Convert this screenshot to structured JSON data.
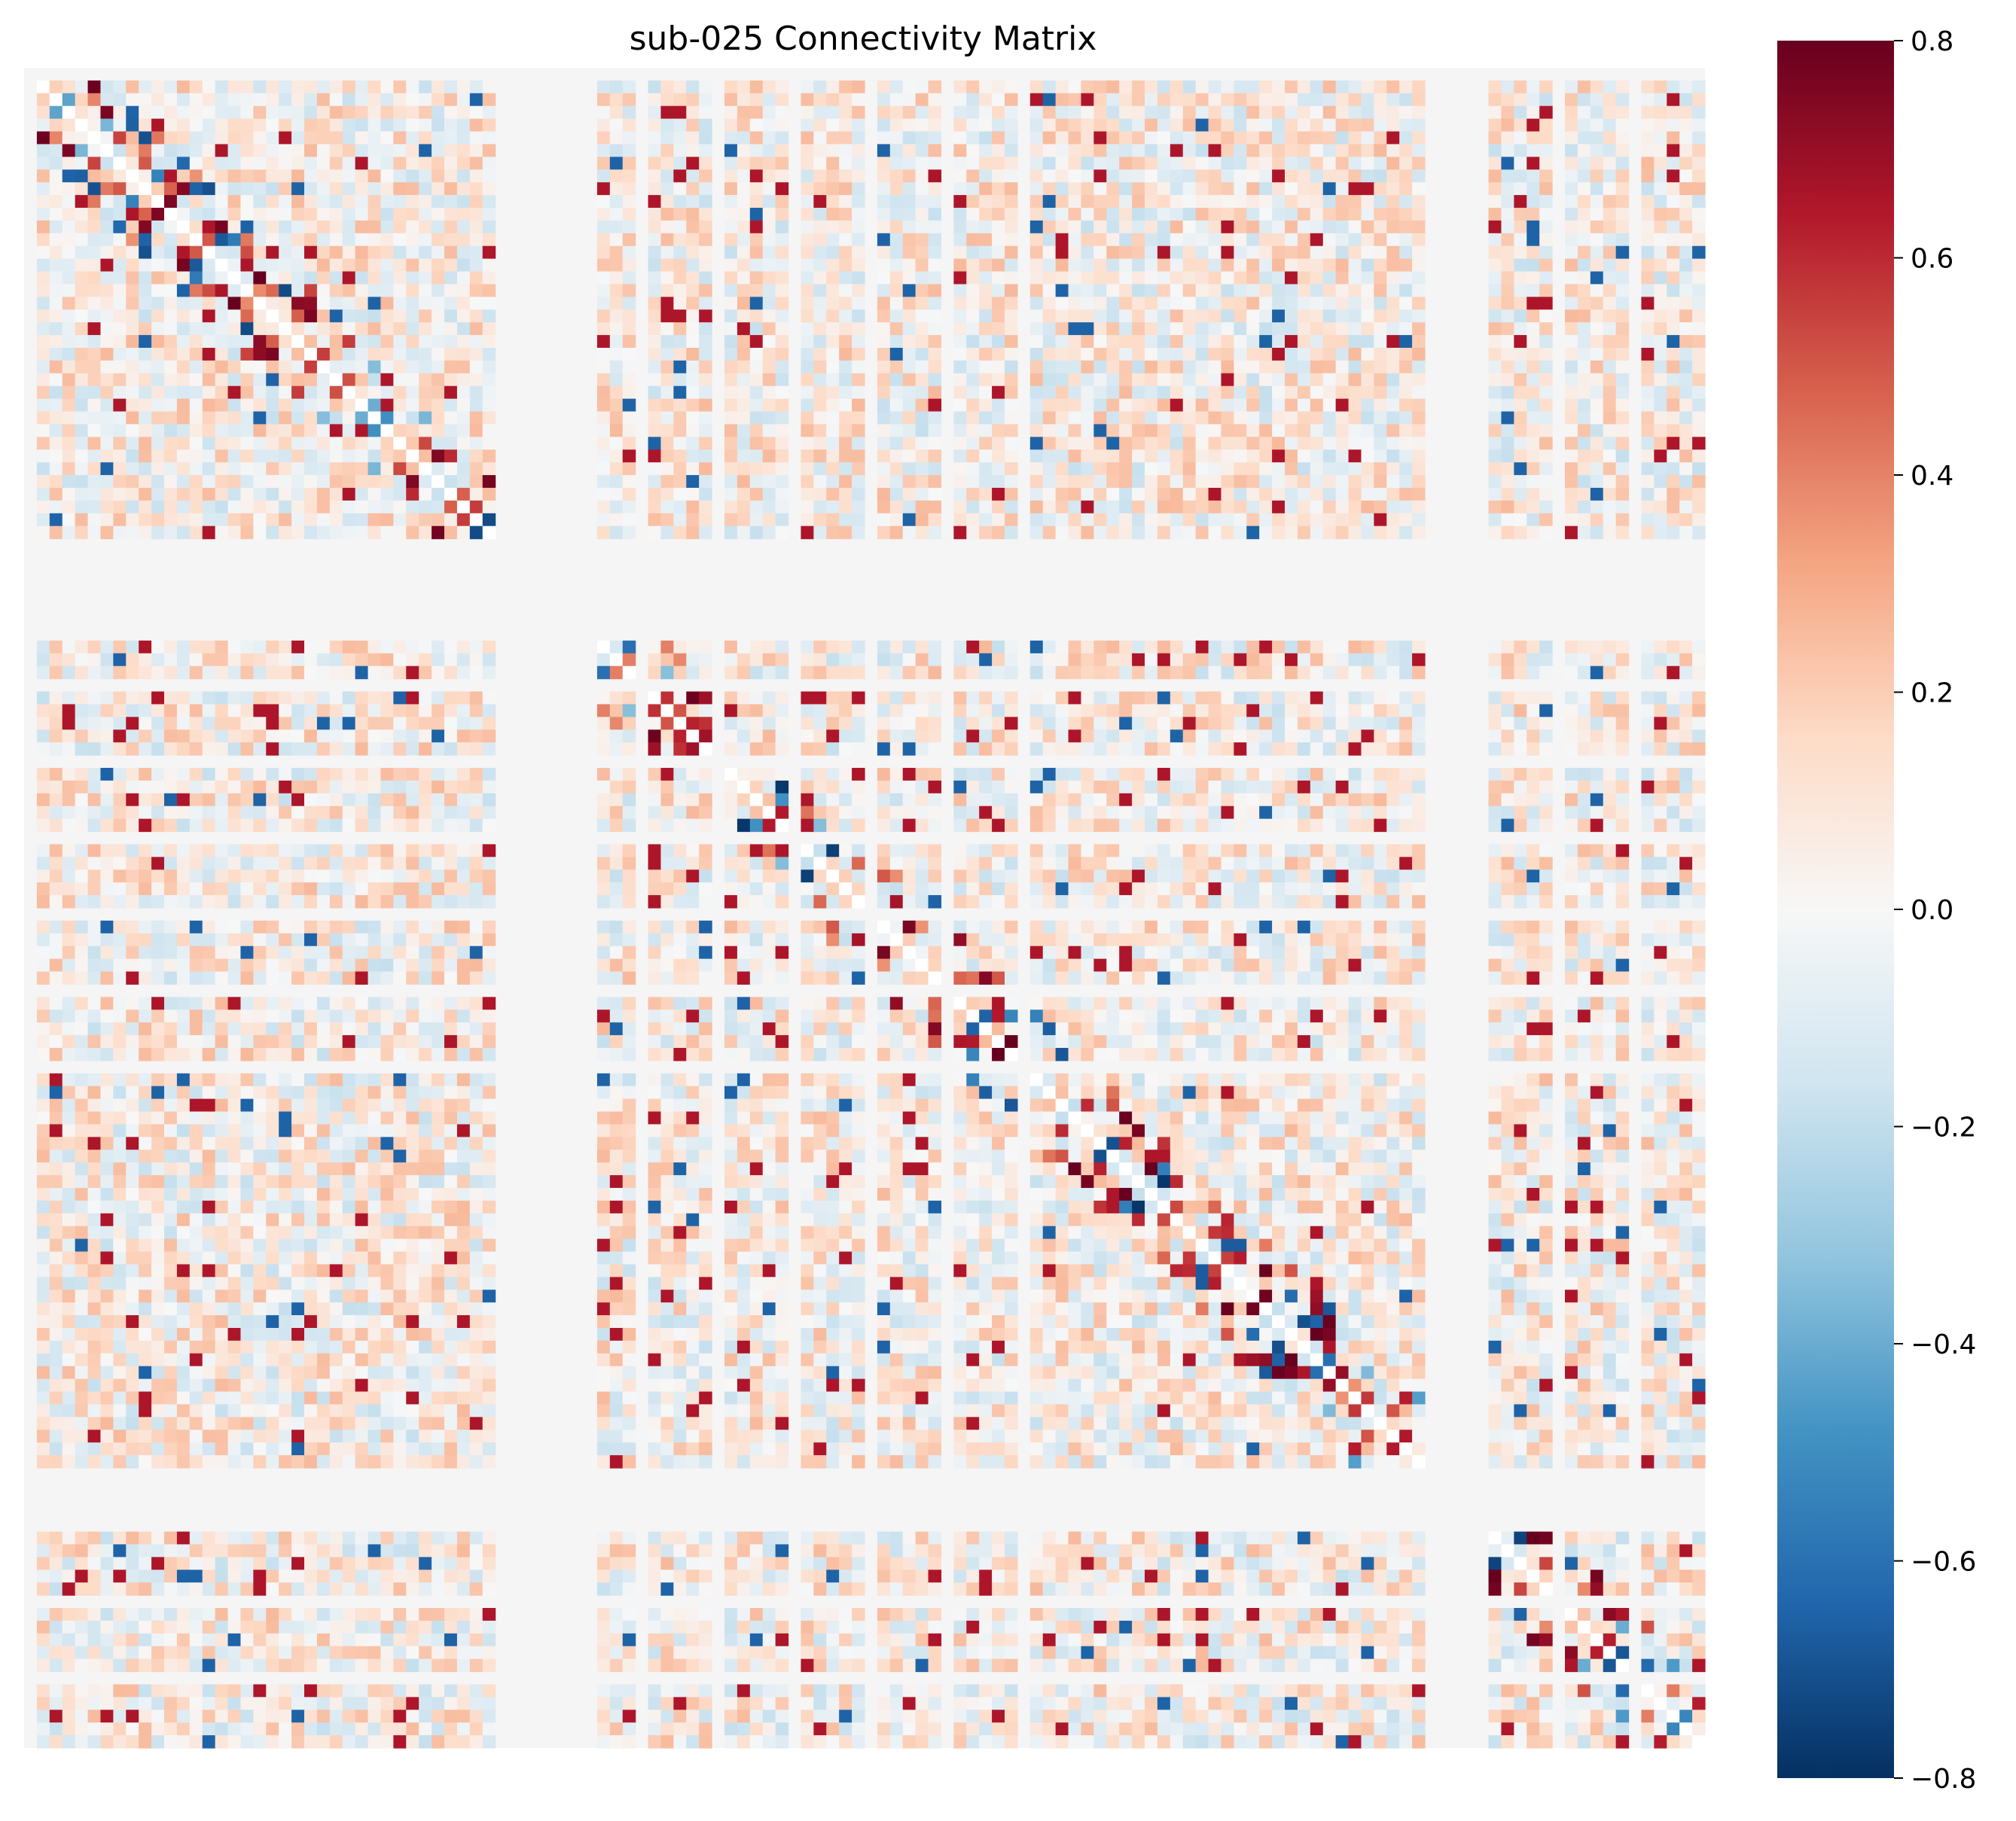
{
  "chart_data": {
    "type": "heatmap",
    "title": "sub-025 Connectivity Matrix",
    "xlabel": "",
    "ylabel": "",
    "n_regions": 132,
    "diagonal_value": 0,
    "colormap": "RdBu_r",
    "vmin": -0.8,
    "vmax": 0.8,
    "colorbar": {
      "placement": "right",
      "ticks": [
        0.8,
        0.6,
        0.4,
        0.2,
        0.0,
        -0.2,
        -0.4,
        -0.6,
        -0.8
      ],
      "tick_labels": [
        "0.8",
        "0.6",
        "0.4",
        "0.2",
        "0.0",
        "−0.2",
        "−0.4",
        "−0.6",
        "−0.8"
      ],
      "colors": [
        "#053061",
        "#2166ac",
        "#4393c3",
        "#92c5de",
        "#d1e5f0",
        "#f7f7f7",
        "#fddbc7",
        "#f4a582",
        "#d6604d",
        "#b2182b",
        "#67001f"
      ]
    },
    "missing_region_color": "#f5f5f5",
    "missing_regions": [
      0,
      37,
      38,
      39,
      40,
      41,
      42,
      43,
      44,
      48,
      54,
      60,
      66,
      72,
      78,
      110,
      111,
      112,
      113,
      114,
      120,
      126
    ],
    "values_note_visible": ""
  }
}
